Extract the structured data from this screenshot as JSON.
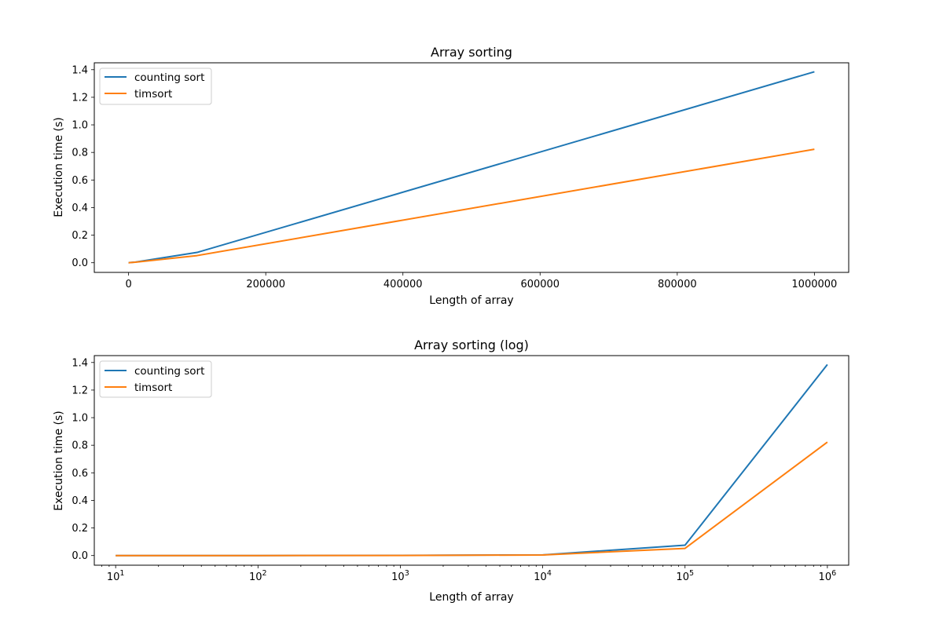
{
  "chart_data": [
    {
      "type": "line",
      "title": "Array sorting",
      "xlabel": "Length of array",
      "ylabel": "Execution time (s)",
      "xscale": "linear",
      "xlim": [
        -50000,
        1050000
      ],
      "ylim": [
        -0.07,
        1.45
      ],
      "xticks": [
        0,
        200000,
        400000,
        600000,
        800000,
        1000000
      ],
      "xtick_labels": [
        "0",
        "200000",
        "400000",
        "600000",
        "800000",
        "1000000"
      ],
      "yticks": [
        0.0,
        0.2,
        0.4,
        0.6,
        0.8,
        1.0,
        1.2,
        1.4
      ],
      "ytick_labels": [
        "0.0",
        "0.2",
        "0.4",
        "0.6",
        "0.8",
        "1.0",
        "1.2",
        "1.4"
      ],
      "legend": "upper left",
      "grid": false,
      "x": [
        10,
        100,
        1000,
        10000,
        100000,
        1000000
      ],
      "series": [
        {
          "name": "counting sort",
          "color": "#1f77b4",
          "values": [
            0.0,
            0.0,
            0.001,
            0.005,
            0.075,
            1.385
          ]
        },
        {
          "name": "timsort",
          "color": "#ff7f0e",
          "values": [
            0.0,
            0.0,
            0.0005,
            0.004,
            0.052,
            0.823
          ]
        }
      ]
    },
    {
      "type": "line",
      "title": "Array sorting (log)",
      "xlabel": "Length of array",
      "ylabel": "Execution time (s)",
      "xscale": "log",
      "xlim": [
        7.08,
        1412000
      ],
      "ylim": [
        -0.07,
        1.45
      ],
      "xticks": [
        10,
        100,
        1000,
        10000,
        100000,
        1000000
      ],
      "xtick_labels": [
        "10^1",
        "10^2",
        "10^3",
        "10^4",
        "10^5",
        "10^6"
      ],
      "yticks": [
        0.0,
        0.2,
        0.4,
        0.6,
        0.8,
        1.0,
        1.2,
        1.4
      ],
      "ytick_labels": [
        "0.0",
        "0.2",
        "0.4",
        "0.6",
        "0.8",
        "1.0",
        "1.2",
        "1.4"
      ],
      "legend": "upper left",
      "grid": false,
      "x": [
        10,
        100,
        1000,
        10000,
        100000,
        1000000
      ],
      "series": [
        {
          "name": "counting sort",
          "color": "#1f77b4",
          "values": [
            0.0,
            0.0,
            0.001,
            0.005,
            0.075,
            1.385
          ]
        },
        {
          "name": "timsort",
          "color": "#ff7f0e",
          "values": [
            0.0,
            0.0,
            0.0005,
            0.004,
            0.052,
            0.823
          ]
        }
      ]
    }
  ]
}
